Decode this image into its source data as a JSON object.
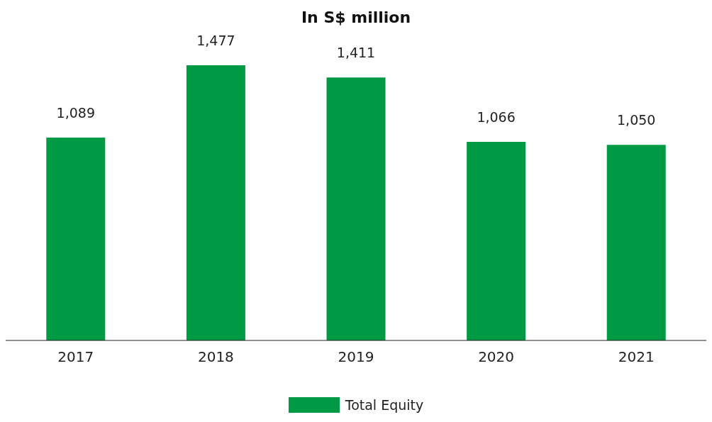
{
  "chart_data": {
    "type": "bar",
    "title": "In S$ million",
    "categories": [
      "2017",
      "2018",
      "2019",
      "2020",
      "2021"
    ],
    "series": [
      {
        "name": "Total Equity",
        "color": "#009a44",
        "values": [
          1089,
          1477,
          1411,
          1066,
          1050
        ],
        "value_labels": [
          "1,089",
          "1,477",
          "1,411",
          "1,066",
          "1,050"
        ]
      }
    ],
    "legend": "bottom",
    "grid": false
  }
}
